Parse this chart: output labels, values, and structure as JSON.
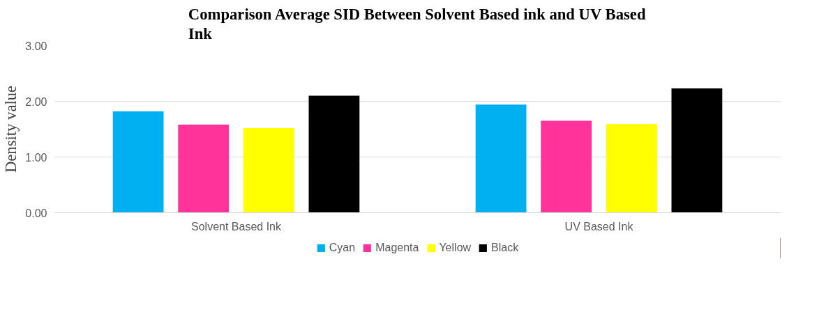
{
  "chart_data": {
    "type": "bar",
    "title": "Comparison Average SID Between Solvent Based ink and UV Based Ink",
    "ylabel": "Density value",
    "categories": [
      "Solvent Based Ink",
      "UV Based Ink"
    ],
    "series": [
      {
        "name": "Cyan",
        "color": "#00b0f0",
        "values": [
          1.82,
          1.94
        ]
      },
      {
        "name": "Magenta",
        "color": "#ff3399",
        "values": [
          1.58,
          1.65
        ]
      },
      {
        "name": "Yellow",
        "color": "#ffff00",
        "values": [
          1.52,
          1.59
        ]
      },
      {
        "name": "Black",
        "color": "#000000",
        "values": [
          2.1,
          2.23
        ]
      }
    ],
    "ylim": [
      0,
      3
    ],
    "yticks": [
      {
        "value": 0,
        "label": "0.00"
      },
      {
        "value": 1,
        "label": "1.00"
      },
      {
        "value": 2,
        "label": "2.00"
      },
      {
        "value": 3,
        "label": "3.00"
      }
    ],
    "grid": "y",
    "legend": "bottom"
  }
}
